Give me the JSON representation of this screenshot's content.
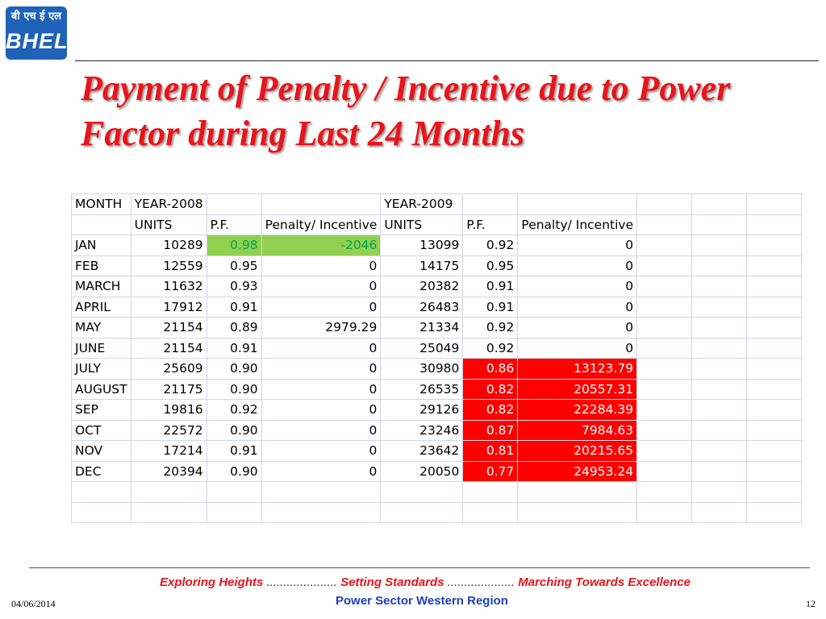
{
  "logo": {
    "devanagari": "बी एच ई एल",
    "text": "BHEL"
  },
  "title": "Payment of Penalty / Incentive due to Power Factor during Last 24 Months",
  "table": {
    "header1": [
      "MONTH",
      "YEAR-2008",
      "",
      "",
      "YEAR-2009",
      "",
      "",
      "",
      "",
      ""
    ],
    "header2": [
      "",
      "UNITS",
      "P.F.",
      "Penalty/ Incentive",
      "UNITS",
      "P.F.",
      "Penalty/ Incentive",
      "",
      "",
      ""
    ],
    "rows": [
      [
        "JAN",
        "10289",
        "0.98",
        "-2046",
        "13099",
        "0.92",
        "0"
      ],
      [
        "FEB",
        "12559",
        "0.95",
        "0",
        "14175",
        "0.95",
        "0"
      ],
      [
        "MARCH",
        "11632",
        "0.93",
        "0",
        "20382",
        "0.91",
        "0"
      ],
      [
        "APRIL",
        "17912",
        "0.91",
        "0",
        "26483",
        "0.91",
        "0"
      ],
      [
        "MAY",
        "21154",
        "0.89",
        "2979.29",
        "21334",
        "0.92",
        "0"
      ],
      [
        "JUNE",
        "21154",
        "0.91",
        "0",
        "25049",
        "0.92",
        "0"
      ],
      [
        "JULY",
        "25609",
        "0.90",
        "0",
        "30980",
        "0.86",
        "13123.79"
      ],
      [
        "AUGUST",
        "21175",
        "0.90",
        "0",
        "26535",
        "0.82",
        "20557.31"
      ],
      [
        "SEP",
        "19816",
        "0.92",
        "0",
        "29126",
        "0.82",
        "22284.39"
      ],
      [
        "OCT",
        "22572",
        "0.90",
        "0",
        "23246",
        "0.87",
        "7984.63"
      ],
      [
        "NOV",
        "17214",
        "0.91",
        "0",
        "23642",
        "0.81",
        "20215.65"
      ],
      [
        "DEC",
        "20394",
        "0.90",
        "0",
        "20050",
        "0.77",
        "24953.24"
      ]
    ],
    "highlight": {
      "green_rows": [
        0
      ],
      "red_rows": [
        6,
        7,
        8,
        9,
        10,
        11
      ]
    },
    "colors": {
      "green_fill": "#92d050",
      "green_text": "#00a651",
      "red_fill": "#ff0000",
      "red_text": "#ffffff",
      "grid": "#d0d7e5"
    }
  },
  "footer": {
    "tagline_1": "Exploring Heights",
    "tagline_sep_1": " .....................  ",
    "tagline_2": "Setting Standards",
    "tagline_sep_2": "  ....................  ",
    "tagline_3": "Marching Towards Excellence",
    "region": "Power Sector Western Region",
    "date": "04/06/2014",
    "page": "12"
  },
  "colors": {
    "title": "#e8151b",
    "region": "#1f3fbf",
    "logo_bg": "#1e63b8"
  }
}
